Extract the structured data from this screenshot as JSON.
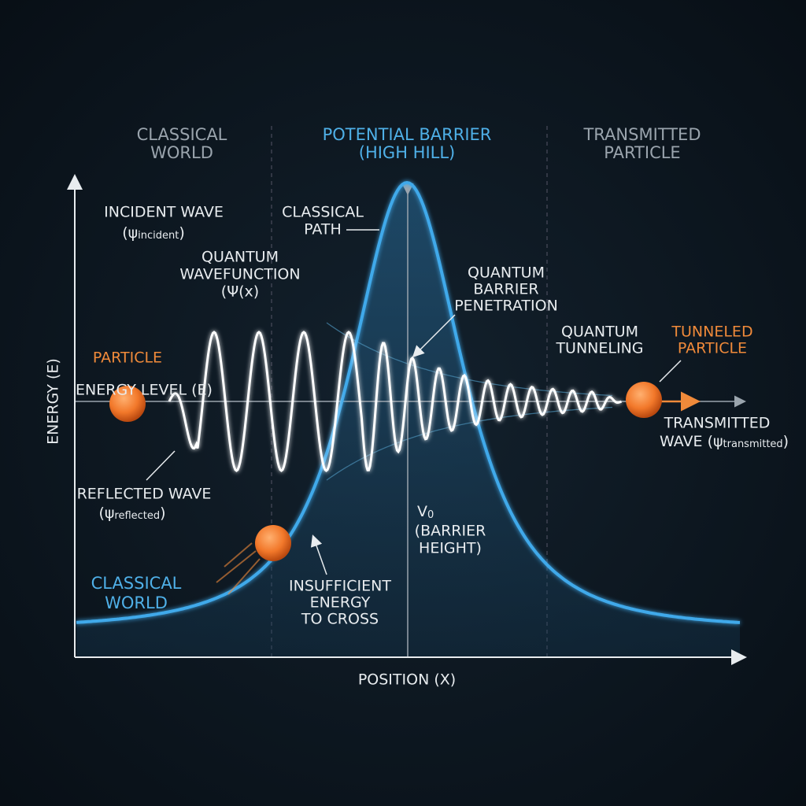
{
  "sections": {
    "left": [
      "CLASSICAL",
      "WORLD"
    ],
    "middle": [
      "POTENTIAL BARRIER",
      "(HIGH HILL)"
    ],
    "right": [
      "TRANSMITTED",
      "PARTICLE"
    ]
  },
  "axes": {
    "y_label": "ENERGY (E)",
    "x_label": "POSITION (X)"
  },
  "labels": {
    "incident_wave": {
      "title": "INCIDENT WAVE",
      "open": "(ψ",
      "subscript": "incident",
      "close": ")"
    },
    "classical_path": [
      "CLASSICAL",
      "PATH"
    ],
    "wavefunction": [
      "QUANTUM",
      "WAVEFUNCTION",
      "(Ψ(x)"
    ],
    "penetration": [
      "QUANTUM",
      "BARRIER",
      "PENETRATION"
    ],
    "tunneling": [
      "QUANTUM",
      "TUNNELING"
    ],
    "tunneled_particle": [
      "TUNNELED",
      "PARTICLE"
    ],
    "particle": "PARTICLE",
    "energy_level": "ENERGY LEVEL (E)",
    "reflected_wave": {
      "title": "REFLECTED WAVE",
      "open": "(ψ",
      "subscript": "reflected",
      "close": ")"
    },
    "barrier_height": {
      "symbol": "V",
      "subscript": "0",
      "lines": [
        "(BARRIER",
        "HEIGHT)"
      ]
    },
    "insufficient": [
      "INSUFFICIENT",
      "ENERGY",
      "TO CROSS"
    ],
    "classical_world": [
      "CLASSICAL",
      "WORLD"
    ],
    "transmitted_wave": {
      "title": "TRANSMITTED",
      "prefix": "WAVE (ψ",
      "subscript": "transmitted",
      "close": ")"
    }
  }
}
